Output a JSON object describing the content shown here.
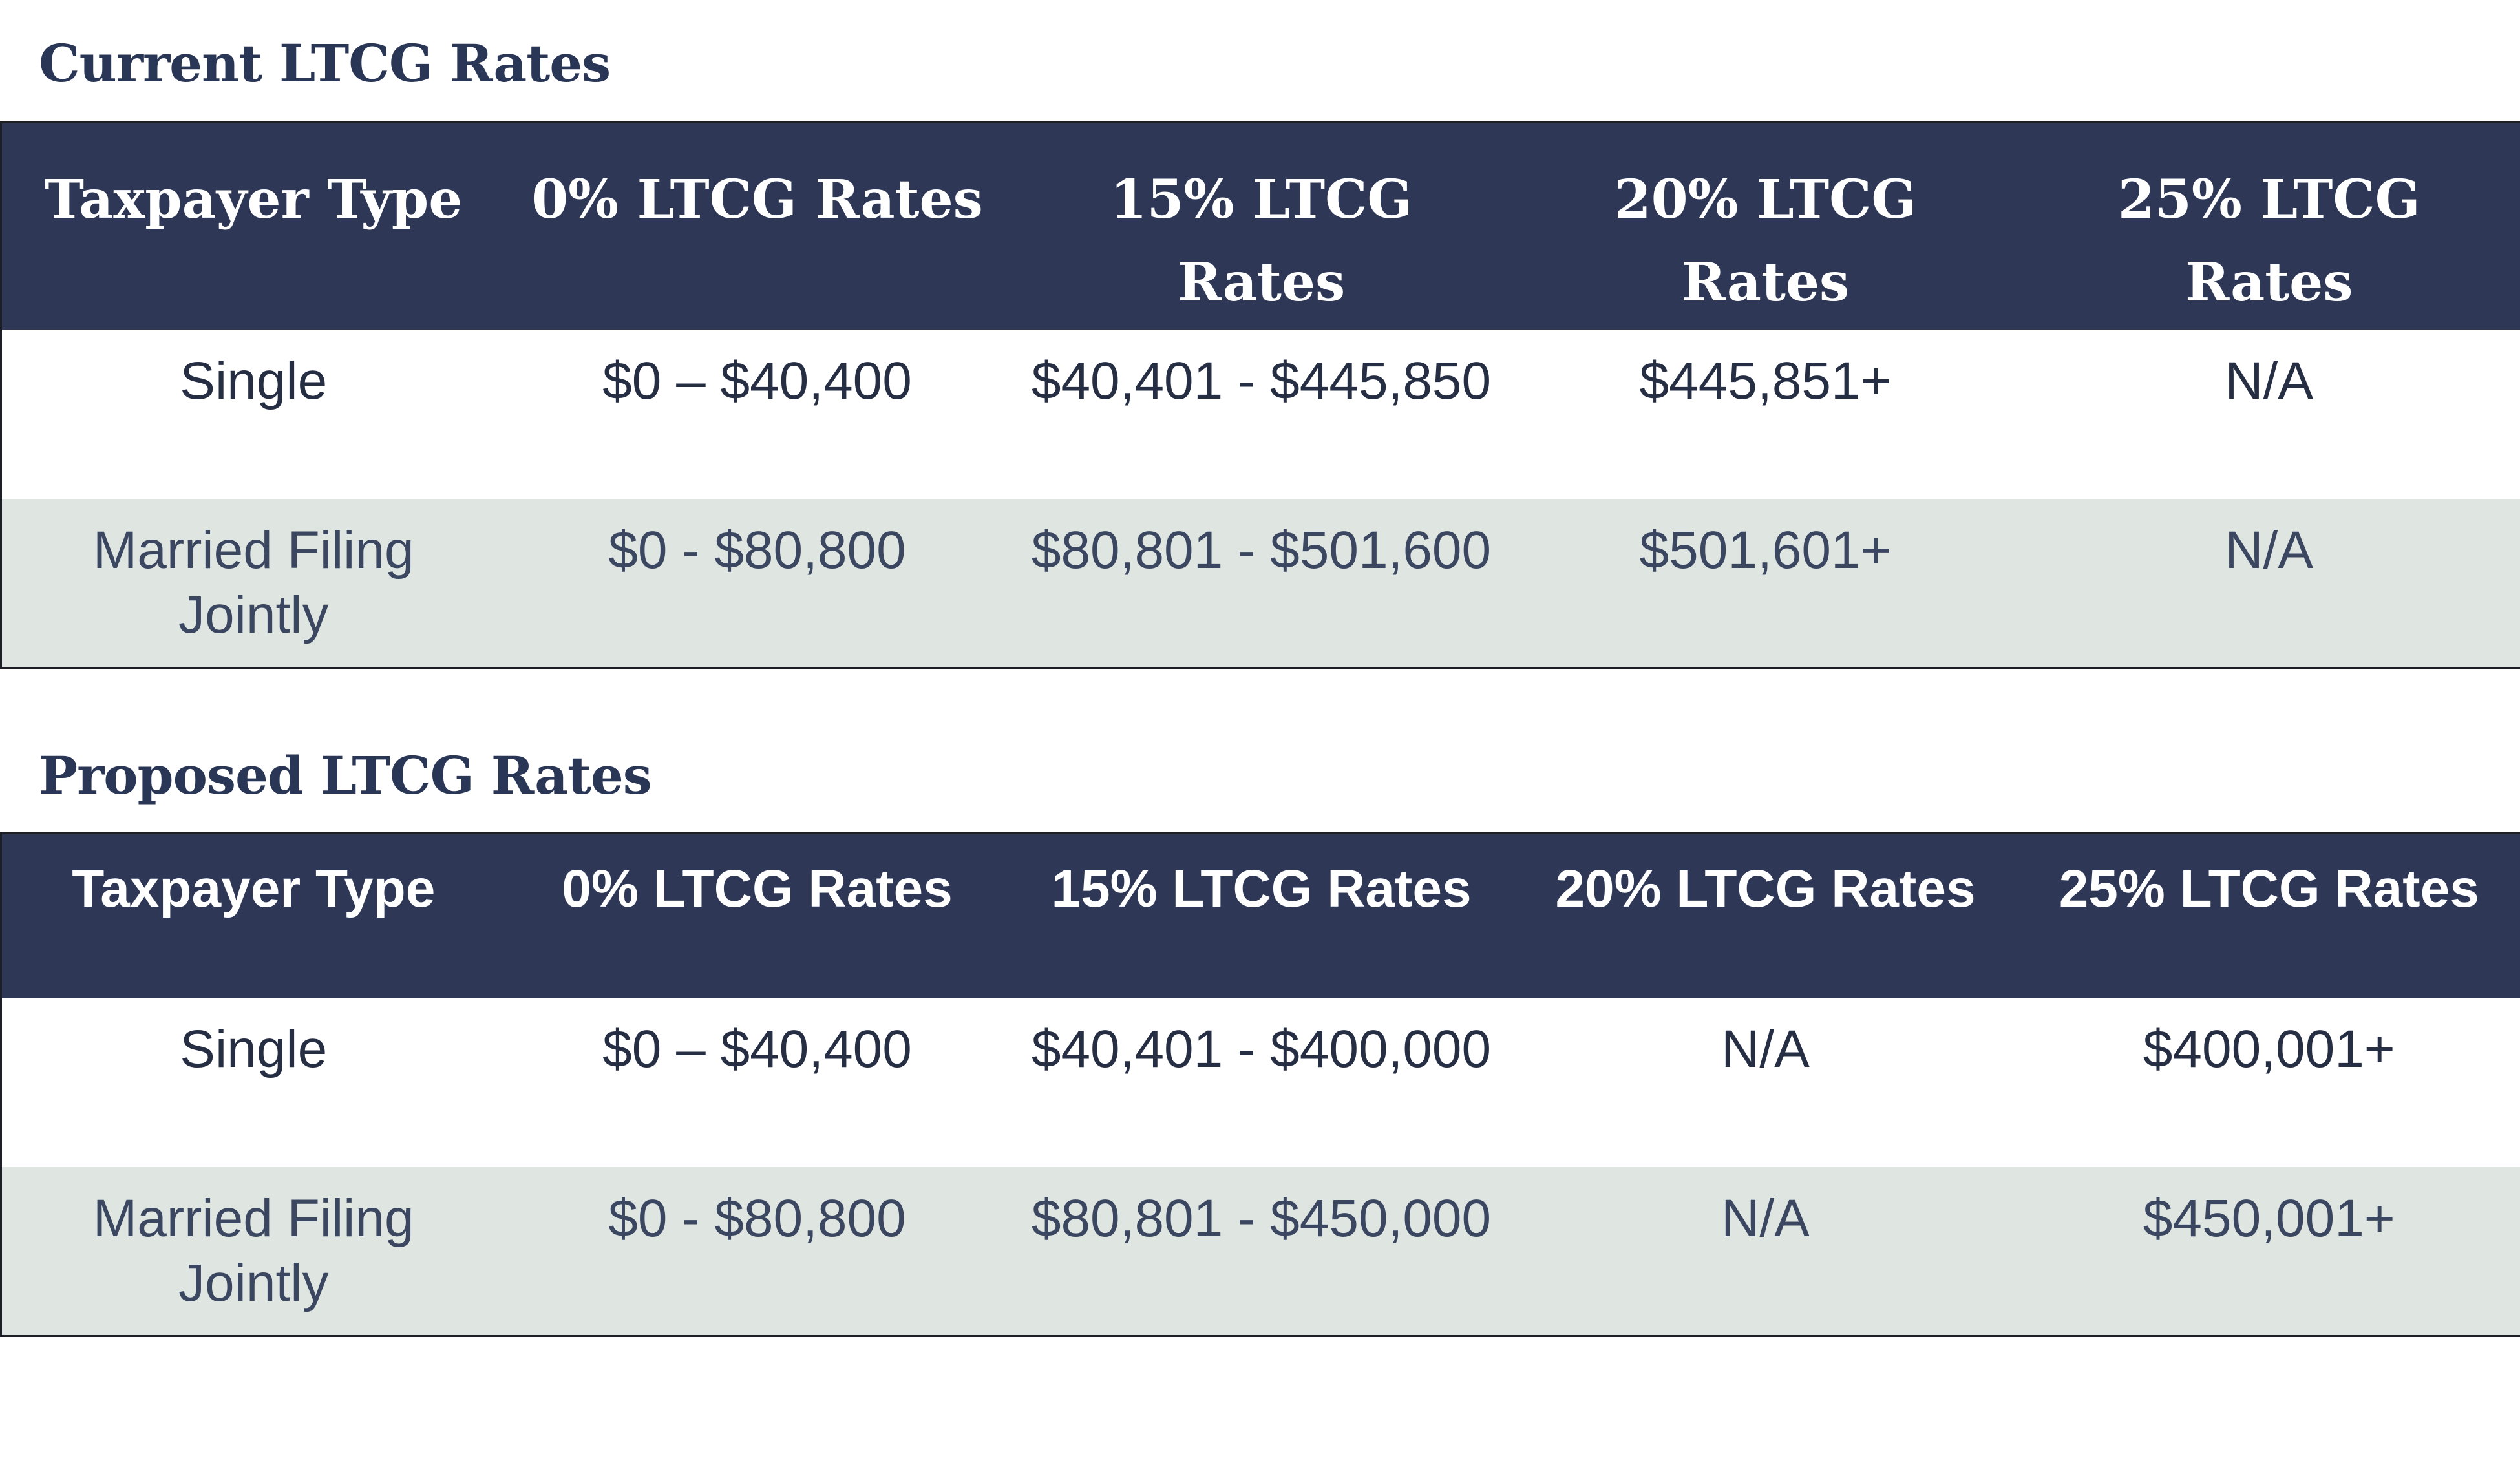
{
  "current": {
    "title": "Current LTCG Rates",
    "headers": [
      "Taxpayer Type",
      "0% LTCG Rates",
      "15% LTCG Rates",
      "20% LTCG Rates",
      "25% LTCG Rates"
    ],
    "rows": [
      [
        "Single",
        "$0 – $40,400",
        "$40,401 - $445,850",
        "$445,851+",
        "N/A"
      ],
      [
        "Married Filing Jointly",
        "$0 - $80,800",
        "$80,801 - $501,600",
        "$501,601+",
        "N/A"
      ]
    ]
  },
  "proposed": {
    "title": "Proposed LTCG Rates",
    "headers": [
      "Taxpayer Type",
      "0% LTCG Rates",
      "15% LTCG Rates",
      "20% LTCG Rates",
      "25% LTCG Rates"
    ],
    "rows": [
      [
        "Single",
        "$0 – $40,400",
        "$40,401 - $400,000",
        "N/A",
        "$400,001+"
      ],
      [
        "Married Filing Jointly",
        "$0 - $80,800",
        "$80,801 - $450,000",
        "N/A",
        "$450,001+"
      ]
    ]
  },
  "colors": {
    "header_bg": "#2e3856",
    "header_text": "#ffffff",
    "alt_row_bg": "#dfe5e1",
    "title_text": "#2a3656"
  }
}
